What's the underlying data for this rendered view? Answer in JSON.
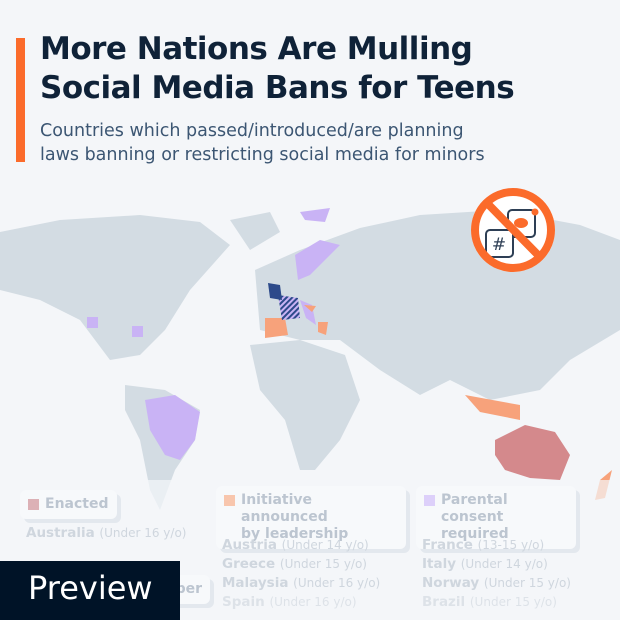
{
  "header": {
    "title_line1": "More Nations Are Mulling",
    "title_line2": "Social Media Bans for Teens",
    "subtitle_line1": "Countries which passed/introduced/are planning",
    "subtitle_line2": "laws banning or restricting social media for minors"
  },
  "icon": "no-social-media-icon",
  "colors": {
    "accent": "#fb6b2b",
    "enacted": "#d4898c",
    "initiative": "#f7a27b",
    "parental": "#c9b3f5",
    "land": "#d3dce3"
  },
  "legend": [
    {
      "label": "Enacted",
      "countries": [
        {
          "name": "Australia",
          "note": "(Under 16 y/o)"
        }
      ]
    },
    {
      "label_line1": "Initiative announced",
      "label_line2": "by leadership",
      "countries": [
        {
          "name": "Austria",
          "note": "(Under 14 y/o)"
        },
        {
          "name": "Greece",
          "note": "(Under 15 y/o)"
        },
        {
          "name": "Malaysia",
          "note": "(Under 16 y/o)"
        },
        {
          "name": "Spain",
          "note": "(Under 16 y/o)"
        }
      ]
    },
    {
      "label_line1": "Parental consent",
      "label_line2": "required",
      "countries": [
        {
          "name": "France",
          "note": "(13-15 y/o)"
        },
        {
          "name": "Italy",
          "note": "(Under 14 y/o)"
        },
        {
          "name": "Norway",
          "note": "(Under 15 y/o)"
        },
        {
          "name": "Brazil",
          "note": "(Under 15 y/o)"
        }
      ]
    }
  ],
  "hidden_legend_fragment": "ber",
  "preview_label": "Preview"
}
